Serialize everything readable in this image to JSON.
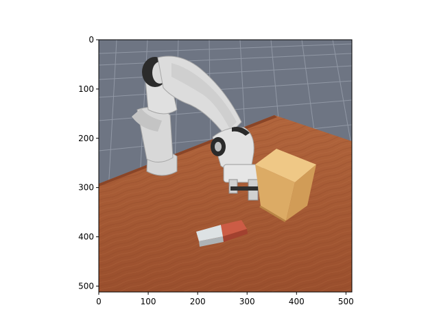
{
  "figure": {
    "description_free": true,
    "x_ticks": [
      "0",
      "100",
      "200",
      "300",
      "400",
      "500"
    ],
    "y_ticks": [
      "0",
      "100",
      "200",
      "300",
      "400",
      "500"
    ],
    "x_tick_values": [
      0,
      100,
      200,
      300,
      400,
      500
    ],
    "y_tick_values": [
      0,
      100,
      200,
      300,
      400,
      500
    ],
    "x_range": [
      0,
      512
    ],
    "y_range": [
      0,
      512
    ],
    "y_inverted": true
  },
  "colors": {
    "floor": "#6f7684",
    "grid_line": "#9aa1ae",
    "table": "#a65a33",
    "table_dark": "#8a4527",
    "robot_white": "#d9d9d9",
    "robot_shadow": "#a9a9a9",
    "robot_black": "#2a2a2a",
    "cube_top": "#e9c27c",
    "cube_side": "#d8a862",
    "block_red": "#c85a44",
    "block_white": "#d8dde0"
  }
}
